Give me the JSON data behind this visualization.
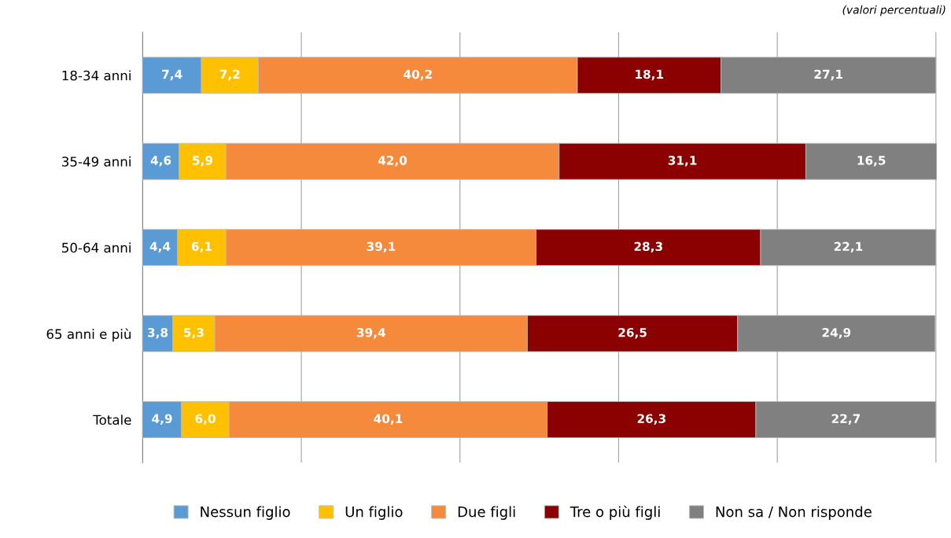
{
  "chart_data": {
    "type": "bar",
    "orientation": "horizontal",
    "stacked": true,
    "categories": [
      "18-34 anni",
      "35-49 anni",
      "50-64 anni",
      "65 anni e più",
      "Totale"
    ],
    "series": [
      {
        "name": "Nessun figlio",
        "color": "#5b9bd5",
        "values": [
          7.4,
          4.6,
          4.4,
          3.8,
          4.9
        ],
        "value_labels": [
          "7,4",
          "4,6",
          "4,4",
          "3,8",
          "4,9"
        ]
      },
      {
        "name": "Un figlio",
        "color": "#ffc000",
        "values": [
          7.2,
          5.9,
          6.1,
          5.3,
          6.0
        ],
        "value_labels": [
          "7,2",
          "5,9",
          "6,1",
          "5,3",
          "6,0"
        ]
      },
      {
        "name": "Due figli",
        "color": "#f68a3c",
        "values": [
          40.2,
          42.0,
          39.1,
          39.4,
          40.1
        ],
        "value_labels": [
          "40,2",
          "42,0",
          "39,1",
          "39,4",
          "40,1"
        ]
      },
      {
        "name": "Tre o più figli",
        "color": "#8b0000",
        "values": [
          18.1,
          31.1,
          28.3,
          26.5,
          26.3
        ],
        "value_labels": [
          "18,1",
          "31,1",
          "28,3",
          "26,5",
          "26,3"
        ]
      },
      {
        "name": "Non sa / Non risponde",
        "color": "#808080",
        "values": [
          27.1,
          16.5,
          22.1,
          24.9,
          22.7
        ],
        "value_labels": [
          "27,1",
          "16,5",
          "22,1",
          "24,9",
          "22,7"
        ]
      }
    ],
    "xlim": [
      0,
      100.1
    ],
    "xticks": [
      {
        "value": 0,
        "label": null
      },
      {
        "value": 20,
        "label": null
      },
      {
        "value": 40,
        "label": null
      },
      {
        "value": 60,
        "label": null
      },
      {
        "value": 80,
        "label": null
      },
      {
        "value": 100,
        "label": null
      }
    ],
    "tick_labels": "y",
    "grid": "x",
    "legend": "bottom",
    "annotations": [
      "(valori percentuali)"
    ]
  }
}
